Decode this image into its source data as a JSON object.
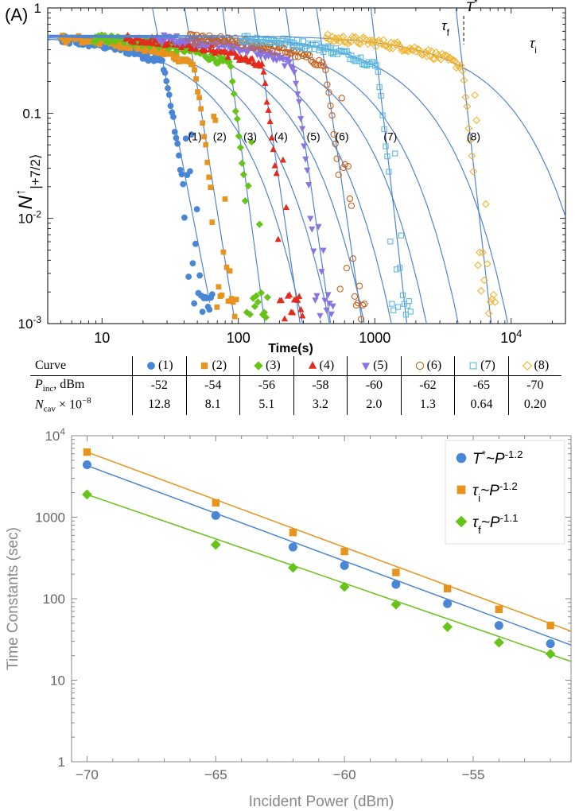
{
  "panel_label": "(A)",
  "chart_data": [
    {
      "type": "scatter",
      "title": "",
      "xlabel": "Time(s)",
      "ylabel": "N↑|+7/2⟩",
      "ylabel_main": "N",
      "ylabel_sup": "↑",
      "ylabel_sub": "|+7/2⟩",
      "xscale": "log",
      "yscale": "log",
      "xlim": [
        4,
        25000
      ],
      "ylim": [
        0.001,
        1
      ],
      "x_ticks": [
        {
          "v": 10,
          "label": "10"
        },
        {
          "v": 100,
          "label": "100"
        },
        {
          "v": 1000,
          "label": "1000"
        },
        {
          "v": 10000,
          "label": "10",
          "sup": "4"
        }
      ],
      "y_ticks": [
        {
          "v": 1,
          "label": "1"
        },
        {
          "v": 0.1,
          "label": "0.1"
        },
        {
          "v": 0.01,
          "label": "10",
          "sup": "-2"
        },
        {
          "v": 0.001,
          "label": "10",
          "sup": "-3"
        }
      ],
      "annotations": {
        "tau_f": "τf",
        "tau_f_main": "τ",
        "tau_f_sub": "f",
        "T_star": "T*",
        "T_star_main": "T",
        "T_star_sup": "*",
        "tau_i": "τi",
        "tau_i_main": "τ",
        "tau_i_sub": "i"
      },
      "series": [
        {
          "name": "(1)",
          "marker": "circle",
          "color": "#4a86d6",
          "T_star": 28,
          "tau_i": 47,
          "tau_f": 21,
          "label_x": 48
        },
        {
          "name": "(2)",
          "marker": "square",
          "color": "#e8931e",
          "T_star": 47,
          "tau_i": 74,
          "tau_f": 29,
          "label_x": 73
        },
        {
          "name": "(3)",
          "marker": "diamond",
          "color": "#66c418",
          "T_star": 87,
          "tau_i": 133,
          "tau_f": 45,
          "label_x": 122
        },
        {
          "name": "(4)",
          "marker": "triangle-up",
          "color": "#e42b1c",
          "T_star": 150,
          "tau_i": 210,
          "tau_f": 85,
          "label_x": 205
        },
        {
          "name": "(5)",
          "marker": "triangle-down",
          "color": "#8c73e2",
          "T_star": 255,
          "tau_i": 380,
          "tau_f": 140,
          "label_x": 355
        },
        {
          "name": "(6)",
          "marker": "circle-open",
          "color": "#c8621e",
          "T_star": 430,
          "tau_i": 650,
          "tau_f": 240,
          "label_x": 575
        },
        {
          "name": "(7)",
          "marker": "square-open",
          "color": "#5ab7e0",
          "T_star": 1050,
          "tau_i": 1500,
          "tau_f": 460,
          "label_x": 1300
        },
        {
          "name": "(8)",
          "marker": "diamond-open",
          "color": "#f2b32e",
          "T_star": 4400,
          "tau_i": 6300,
          "tau_f": 1900,
          "label_x": 5300
        }
      ]
    },
    {
      "type": "scatter",
      "title": "",
      "xlabel": "Incident Power (dBm)",
      "ylabel": "Time Constants (sec)",
      "yscale": "log",
      "xlim": [
        -70.6,
        -51.2
      ],
      "ylim": [
        1,
        10000
      ],
      "x_ticks": [
        -70,
        -65,
        -60,
        -55
      ],
      "x_tick_labels": [
        "−70",
        "−65",
        "−60",
        "−55"
      ],
      "y_ticks": [
        {
          "v": 1,
          "label": "1"
        },
        {
          "v": 10,
          "label": "10"
        },
        {
          "v": 100,
          "label": "100"
        },
        {
          "v": 1000,
          "label": "1000"
        },
        {
          "v": 10000,
          "label": "10",
          "sup": "4"
        }
      ],
      "legend_position": "top-right",
      "x": [
        -70,
        -65,
        -62,
        -60,
        -58,
        -56,
        -54,
        -52
      ],
      "series": [
        {
          "name": "T*~P^-1.2",
          "sym": "T",
          "sym_sup": "*",
          "sep": "~P",
          "exp": "-1.2",
          "marker": "circle",
          "color": "#4a86d6",
          "values": [
            4400,
            1050,
            430,
            255,
            150,
            87,
            47,
            28
          ],
          "fit": [
            4300,
            27
          ]
        },
        {
          "name": "τi~P^-1.2",
          "sym": "τ",
          "sym_sub": "i",
          "sep": "~P",
          "exp": "-1.2",
          "marker": "square",
          "color": "#e8931e",
          "values": [
            6300,
            1500,
            650,
            380,
            210,
            133,
            74,
            47
          ],
          "fit": [
            6300,
            40
          ]
        },
        {
          "name": "τf~P^-1.1",
          "sym": "τ",
          "sym_sub": "f",
          "sep": "~P",
          "exp": "-1.1",
          "marker": "diamond",
          "color": "#66c418",
          "values": [
            1900,
            460,
            240,
            140,
            85,
            45,
            29,
            21
          ],
          "fit": [
            1900,
            17
          ]
        }
      ]
    }
  ],
  "table": {
    "header": "Curve",
    "row1_head_main": "P",
    "row1_head_sub": "inc",
    "row1_head_unit": ", dBm",
    "row2_head_main": "N",
    "row2_head_sub": "cav",
    "row2_head_factor": " × 10",
    "row2_head_exp": "−8",
    "columns": [
      {
        "curve": "(1)",
        "marker": "circle",
        "color": "#4a86d6",
        "p_inc": "-52",
        "n_cav": "12.8"
      },
      {
        "curve": "(2)",
        "marker": "square",
        "color": "#e8931e",
        "p_inc": "-54",
        "n_cav": "8.1"
      },
      {
        "curve": "(3)",
        "marker": "diamond",
        "color": "#66c418",
        "p_inc": "-56",
        "n_cav": "5.1"
      },
      {
        "curve": "(4)",
        "marker": "triangle-up",
        "color": "#e42b1c",
        "p_inc": "-58",
        "n_cav": "3.2"
      },
      {
        "curve": "(5)",
        "marker": "triangle-down",
        "color": "#8c73e2",
        "p_inc": "-60",
        "n_cav": "2.0"
      },
      {
        "curve": "(6)",
        "marker": "circle-open",
        "color": "#c8621e",
        "p_inc": "-62",
        "n_cav": "1.3"
      },
      {
        "curve": "(7)",
        "marker": "square-open",
        "color": "#5ab7e0",
        "p_inc": "-65",
        "n_cav": "0.64"
      },
      {
        "curve": "(8)",
        "marker": "diamond-open",
        "color": "#f2b32e",
        "p_inc": "-70",
        "n_cav": "0.20"
      }
    ]
  }
}
